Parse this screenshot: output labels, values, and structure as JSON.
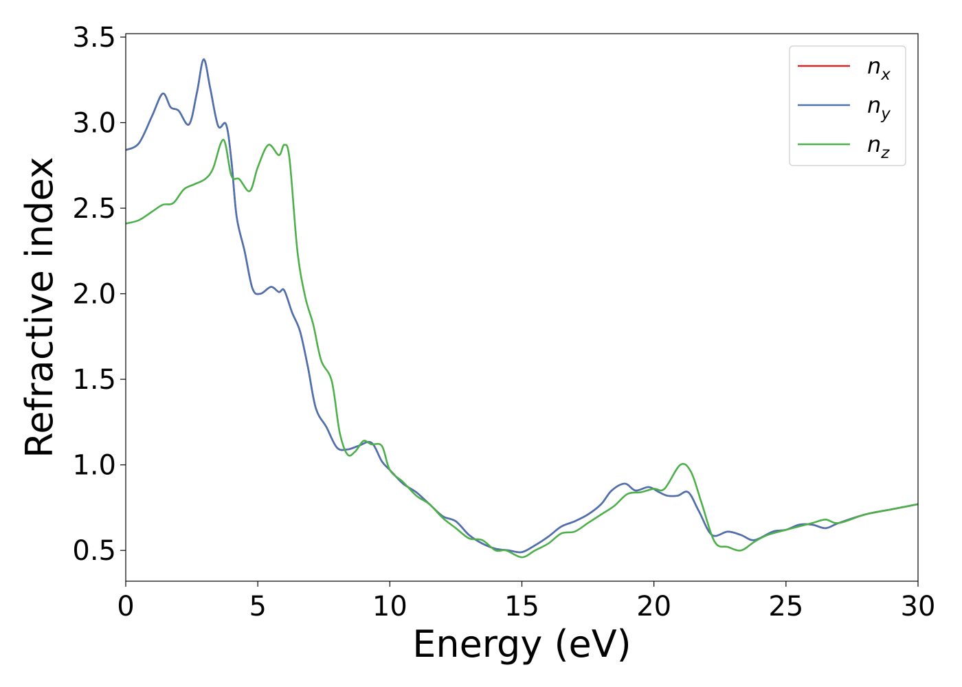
{
  "chart_data": {
    "type": "line",
    "xlabel": "Energy (eV)",
    "ylabel": "Refractive index",
    "xlim": [
      0,
      30
    ],
    "ylim": [
      0.32,
      3.52
    ],
    "xticks": [
      0,
      5,
      10,
      15,
      20,
      25,
      30
    ],
    "xtick_labels": [
      "0",
      "5",
      "10",
      "15",
      "20",
      "25",
      "30"
    ],
    "yticks": [
      0.5,
      1.0,
      1.5,
      2.0,
      2.5,
      3.0,
      3.5
    ],
    "ytick_labels": [
      "0.5",
      "1.0",
      "1.5",
      "2.0",
      "2.5",
      "3.0",
      "3.5"
    ],
    "grid": false,
    "legend_position": "top-right",
    "series": [
      {
        "name": "n",
        "sub": "x",
        "color": "#d62728",
        "x": [
          0,
          0.5,
          1.0,
          1.4,
          1.7,
          2.0,
          2.4,
          2.7,
          2.95,
          3.2,
          3.5,
          3.8,
          4.0,
          4.2,
          4.5,
          4.8,
          5.1,
          5.5,
          5.8,
          6.0,
          6.3,
          6.6,
          6.9,
          7.2,
          7.6,
          8.0,
          8.4,
          8.8,
          9.3,
          9.7,
          10.0,
          10.5,
          11.0,
          11.5,
          12.0,
          12.5,
          13.0,
          13.5,
          14.0,
          14.5,
          15.0,
          15.5,
          16.0,
          16.5,
          17.0,
          17.5,
          18.0,
          18.4,
          18.9,
          19.3,
          19.8,
          20.2,
          20.5,
          20.9,
          21.3,
          21.7,
          22.2,
          22.8,
          23.3,
          23.8,
          24.5,
          25.0,
          25.5,
          26.0,
          26.5,
          27.0,
          28.0,
          29.0,
          30.0
        ],
        "y": [
          2.84,
          2.88,
          3.04,
          3.17,
          3.09,
          3.07,
          2.99,
          3.18,
          3.37,
          3.2,
          2.98,
          2.99,
          2.78,
          2.45,
          2.25,
          2.03,
          2.0,
          2.04,
          2.01,
          2.02,
          1.89,
          1.78,
          1.57,
          1.33,
          1.22,
          1.1,
          1.09,
          1.11,
          1.13,
          1.02,
          0.97,
          0.89,
          0.84,
          0.77,
          0.7,
          0.67,
          0.59,
          0.54,
          0.51,
          0.5,
          0.49,
          0.53,
          0.58,
          0.64,
          0.67,
          0.71,
          0.77,
          0.85,
          0.89,
          0.85,
          0.87,
          0.84,
          0.82,
          0.82,
          0.84,
          0.73,
          0.59,
          0.61,
          0.59,
          0.56,
          0.61,
          0.62,
          0.65,
          0.65,
          0.63,
          0.66,
          0.71,
          0.74,
          0.77
        ]
      },
      {
        "name": "n",
        "sub": "y",
        "color": "#4a72b0",
        "x": [
          0,
          0.5,
          1.0,
          1.4,
          1.7,
          2.0,
          2.4,
          2.7,
          2.95,
          3.2,
          3.5,
          3.8,
          4.0,
          4.2,
          4.5,
          4.8,
          5.1,
          5.5,
          5.8,
          6.0,
          6.3,
          6.6,
          6.9,
          7.2,
          7.6,
          8.0,
          8.4,
          8.8,
          9.3,
          9.7,
          10.0,
          10.5,
          11.0,
          11.5,
          12.0,
          12.5,
          13.0,
          13.5,
          14.0,
          14.5,
          15.0,
          15.5,
          16.0,
          16.5,
          17.0,
          17.5,
          18.0,
          18.4,
          18.9,
          19.3,
          19.8,
          20.2,
          20.5,
          20.9,
          21.3,
          21.7,
          22.2,
          22.8,
          23.3,
          23.8,
          24.5,
          25.0,
          25.5,
          26.0,
          26.5,
          27.0,
          28.0,
          29.0,
          30.0
        ],
        "y": [
          2.84,
          2.88,
          3.04,
          3.17,
          3.09,
          3.07,
          2.99,
          3.18,
          3.37,
          3.2,
          2.98,
          2.99,
          2.78,
          2.45,
          2.25,
          2.03,
          2.0,
          2.04,
          2.01,
          2.02,
          1.89,
          1.78,
          1.57,
          1.33,
          1.22,
          1.1,
          1.09,
          1.11,
          1.13,
          1.02,
          0.97,
          0.89,
          0.84,
          0.77,
          0.7,
          0.67,
          0.59,
          0.54,
          0.51,
          0.5,
          0.49,
          0.53,
          0.58,
          0.64,
          0.67,
          0.71,
          0.77,
          0.85,
          0.89,
          0.85,
          0.87,
          0.84,
          0.82,
          0.82,
          0.84,
          0.73,
          0.59,
          0.61,
          0.59,
          0.56,
          0.61,
          0.62,
          0.65,
          0.65,
          0.63,
          0.66,
          0.71,
          0.74,
          0.77
        ]
      },
      {
        "name": "n",
        "sub": "z",
        "color": "#4daf4a",
        "x": [
          0,
          0.5,
          1.0,
          1.4,
          1.8,
          2.2,
          2.6,
          3.0,
          3.3,
          3.7,
          4.0,
          4.3,
          4.7,
          5.0,
          5.4,
          5.8,
          6.0,
          6.2,
          6.5,
          6.8,
          7.1,
          7.4,
          7.8,
          8.1,
          8.4,
          8.7,
          9.0,
          9.3,
          9.7,
          10.0,
          10.5,
          11.0,
          11.5,
          12.0,
          12.5,
          13.0,
          13.5,
          14.0,
          14.4,
          15.0,
          15.5,
          16.0,
          16.5,
          17.0,
          17.5,
          18.0,
          18.5,
          19.0,
          19.5,
          20.0,
          20.4,
          21.0,
          21.4,
          21.8,
          22.3,
          22.8,
          23.3,
          23.8,
          24.3,
          25.0,
          25.5,
          26.0,
          26.5,
          27.0,
          28.0,
          29.0,
          30.0
        ],
        "y": [
          2.41,
          2.43,
          2.48,
          2.52,
          2.53,
          2.61,
          2.64,
          2.67,
          2.73,
          2.9,
          2.69,
          2.67,
          2.6,
          2.74,
          2.87,
          2.81,
          2.87,
          2.79,
          2.25,
          1.98,
          1.82,
          1.61,
          1.49,
          1.19,
          1.06,
          1.08,
          1.14,
          1.12,
          1.11,
          0.97,
          0.9,
          0.82,
          0.77,
          0.69,
          0.63,
          0.57,
          0.56,
          0.5,
          0.5,
          0.46,
          0.5,
          0.54,
          0.6,
          0.61,
          0.66,
          0.71,
          0.76,
          0.83,
          0.84,
          0.86,
          0.86,
          1.0,
          0.96,
          0.78,
          0.55,
          0.52,
          0.5,
          0.55,
          0.59,
          0.62,
          0.64,
          0.66,
          0.68,
          0.66,
          0.71,
          0.74,
          0.77
        ]
      }
    ]
  }
}
